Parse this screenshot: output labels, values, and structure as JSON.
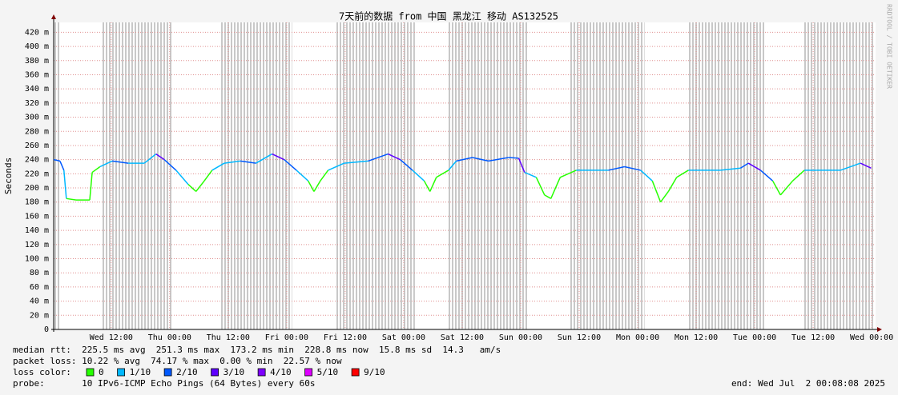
{
  "chart_data": {
    "type": "line",
    "title": "7天前的数据 from 中国 黑龙江 移动 AS132525",
    "y_label": "Seconds",
    "side_label": "RRDTOOL / TOBI OETIKER",
    "xlim": [
      0,
      168.6
    ],
    "ylim": [
      0,
      0.434
    ],
    "grid": true,
    "xticks": [
      {
        "value": 11.8,
        "label": "Wed 12:00"
      },
      {
        "value": 23.8,
        "label": "Thu 00:00"
      },
      {
        "value": 35.8,
        "label": "Thu 12:00"
      },
      {
        "value": 47.8,
        "label": "Fri 00:00"
      },
      {
        "value": 59.8,
        "label": "Fri 12:00"
      },
      {
        "value": 71.8,
        "label": "Sat 00:00"
      },
      {
        "value": 83.8,
        "label": "Sat 12:00"
      },
      {
        "value": 95.8,
        "label": "Sun 00:00"
      },
      {
        "value": 107.8,
        "label": "Sun 12:00"
      },
      {
        "value": 119.8,
        "label": "Mon 00:00"
      },
      {
        "value": 131.8,
        "label": "Mon 12:00"
      },
      {
        "value": 143.8,
        "label": "Tue 00:00"
      },
      {
        "value": 155.8,
        "label": "Tue 12:00"
      },
      {
        "value": 167.8,
        "label": "Wed 00:00"
      }
    ],
    "yticks": [
      0,
      {
        "value": 0.02,
        "label": "20 m"
      },
      {
        "value": 0.04,
        "label": "40 m"
      },
      {
        "value": 0.06,
        "label": "60 m"
      },
      {
        "value": 0.08,
        "label": "80 m"
      },
      {
        "value": 0.1,
        "label": "100 m"
      },
      {
        "value": 0.12,
        "label": "120 m"
      },
      {
        "value": 0.14,
        "label": "140 m"
      },
      {
        "value": 0.16,
        "label": "160 m"
      },
      {
        "value": 0.18,
        "label": "180 m"
      },
      {
        "value": 0.2,
        "label": "200 m"
      },
      {
        "value": 0.22,
        "label": "220 m"
      },
      {
        "value": 0.24,
        "label": "240 m"
      },
      {
        "value": 0.26,
        "label": "260 m"
      },
      {
        "value": 0.28,
        "label": "280 m"
      },
      {
        "value": 0.3,
        "label": "300 m"
      },
      {
        "value": 0.32,
        "label": "320 m"
      },
      {
        "value": 0.34,
        "label": "340 m"
      },
      {
        "value": 0.36,
        "label": "360 m"
      },
      {
        "value": 0.38,
        "label": "380 m"
      },
      {
        "value": 0.4,
        "label": "400 m"
      },
      {
        "value": 0.42,
        "label": "420 m"
      }
    ],
    "loss_spans": [
      [
        0,
        1.3
      ],
      [
        10,
        24.3
      ],
      [
        34.2,
        48.9
      ],
      [
        58,
        74.1
      ],
      [
        80.9,
        97.4
      ],
      [
        105.9,
        121.2
      ],
      [
        130.2,
        145.8
      ],
      [
        153.9,
        168.2
      ]
    ],
    "x": [
      0,
      1.3,
      2.1,
      2.6,
      4.6,
      7.4,
      7.9,
      9.5,
      12,
      15.3,
      18.6,
      21,
      22.7,
      25.1,
      27.6,
      29.2,
      30.9,
      32.5,
      35,
      38.3,
      41.5,
      44.8,
      47.3,
      49.8,
      52.2,
      53.4,
      54.7,
      56.3,
      59.6,
      64.5,
      68.6,
      71.1,
      73.6,
      76,
      77.2,
      78.5,
      81,
      82.6,
      85.9,
      89.2,
      93.3,
      95.4,
      96.6,
      99,
      100.7,
      102,
      103.9,
      107.2,
      113.8,
      117.1,
      120.4,
      122.8,
      124.5,
      126.1,
      127.8,
      130.2,
      136.8,
      140.9,
      142.5,
      145,
      147.5,
      149.1,
      151.6,
      154,
      156.5,
      161.4,
      165.5,
      167.7
    ],
    "values": [
      0.24,
      0.238,
      0.225,
      0.185,
      0.183,
      0.183,
      0.222,
      0.23,
      0.238,
      0.235,
      0.235,
      0.248,
      0.24,
      0.225,
      0.205,
      0.195,
      0.21,
      0.225,
      0.235,
      0.238,
      0.235,
      0.248,
      0.24,
      0.225,
      0.21,
      0.195,
      0.21,
      0.225,
      0.235,
      0.238,
      0.248,
      0.24,
      0.225,
      0.21,
      0.195,
      0.215,
      0.225,
      0.238,
      0.243,
      0.238,
      0.243,
      0.242,
      0.222,
      0.215,
      0.19,
      0.185,
      0.215,
      0.225,
      0.225,
      0.23,
      0.225,
      0.21,
      0.18,
      0.195,
      0.215,
      0.225,
      0.225,
      0.228,
      0.235,
      0.225,
      0.21,
      0.19,
      0.21,
      0.225,
      0.225,
      0.225,
      0.235,
      0.228
    ],
    "loss": [
      2,
      2,
      1,
      0,
      0,
      0,
      0,
      1,
      2,
      1,
      1,
      3,
      2,
      1,
      0,
      0,
      0,
      1,
      1,
      2,
      1,
      3,
      2,
      1,
      0,
      0,
      0,
      1,
      1,
      2,
      3,
      2,
      1,
      0,
      0,
      0,
      1,
      2,
      2,
      2,
      2,
      3,
      1,
      0,
      0,
      0,
      0,
      1,
      2,
      2,
      1,
      0,
      0,
      0,
      0,
      1,
      1,
      2,
      3,
      2,
      0,
      0,
      0,
      1,
      1,
      1,
      3,
      2
    ],
    "stats": [
      "median rtt:  225.5 ms avg  251.3 ms max  173.2 ms min  228.8 ms now  15.8 ms sd  14.3   am/s",
      "packet loss: 10.22 % avg  74.17 % max  0.00 % min  22.57 % now"
    ],
    "loss_label": "loss color:",
    "loss_colors": [
      {
        "label": "0",
        "color": "#26ff00"
      },
      {
        "label": "1/10",
        "color": "#00b8ff"
      },
      {
        "label": "2/10",
        "color": "#0059ff"
      },
      {
        "label": "3/10",
        "color": "#5e00ff"
      },
      {
        "label": "4/10",
        "color": "#7e00ff"
      },
      {
        "label": "5/10",
        "color": "#dd00ff"
      },
      {
        "label": "9/10",
        "color": "#ff0000"
      }
    ],
    "probe": "probe:       10 IPv6-ICMP Echo Pings (64 Bytes) every 60s",
    "end": "end: Wed Jul  2 00:08:08 2025"
  }
}
